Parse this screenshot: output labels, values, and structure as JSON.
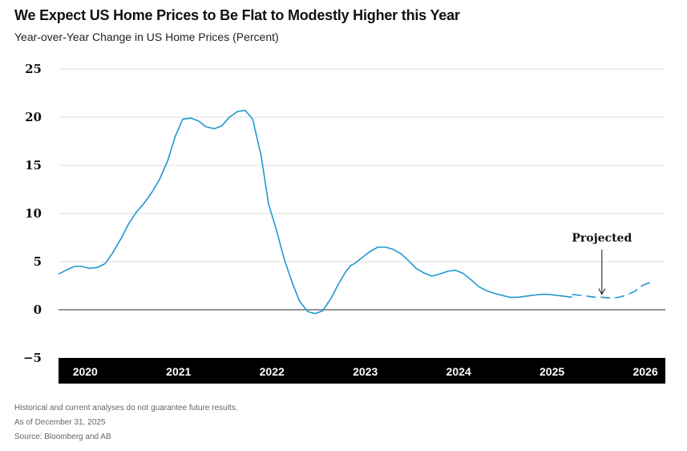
{
  "header": {
    "title": "We Expect US Home Prices to Be Flat to Modestly Higher this Year",
    "subtitle": "Year-over-Year Change in US Home Prices (Percent)"
  },
  "footer": {
    "note1": "Historical and current analyses do not guarantee future results.",
    "note2": "As of December 31, 2025",
    "note3": "Source: Bloomberg and AB"
  },
  "colors": {
    "line": "#1f97cf",
    "axis_band": "#000000",
    "grid": "#dddddd",
    "zero_line": "#555555"
  },
  "chart_data": {
    "type": "line",
    "title": "We Expect US Home Prices to Be Flat to Modestly Higher this Year",
    "ylabel": "Year-over-Year Change in US Home Prices (Percent)",
    "xlabel": "",
    "ylim": [
      -5,
      25
    ],
    "xlim": [
      2019.8,
      2026.3
    ],
    "yticks": [
      -5,
      0,
      5,
      10,
      15,
      20,
      25
    ],
    "ytick_labels": [
      "−5",
      "0",
      "5",
      "10",
      "15",
      "20",
      "25"
    ],
    "xticks": [
      2020,
      2021,
      2022,
      2023,
      2024,
      2025,
      2026
    ],
    "xtick_labels": [
      "2020",
      "2021",
      "2022",
      "2023",
      "2024",
      "2025",
      "2026"
    ],
    "grid": true,
    "annotation": {
      "text": "Projected",
      "x": 2025.62,
      "y": 1.2
    },
    "series": [
      {
        "style": "solid",
        "x": [
          2019.8,
          2019.88,
          2019.97,
          2020.05,
          2020.13,
          2020.22,
          2020.3,
          2020.38,
          2020.47,
          2020.55,
          2020.63,
          2020.72,
          2020.8,
          2020.88,
          2020.97,
          2021.05,
          2021.13,
          2021.22,
          2021.3,
          2021.38,
          2021.47,
          2021.55,
          2021.63,
          2021.72,
          2021.8,
          2021.88,
          2021.97,
          2022.05,
          2022.13,
          2022.22,
          2022.3,
          2022.38,
          2022.47,
          2022.55,
          2022.63,
          2022.72,
          2022.8,
          2022.88,
          2022.93,
          2022.97,
          2023.05,
          2023.13,
          2023.22,
          2023.3,
          2023.38,
          2023.47,
          2023.55,
          2023.63,
          2023.72,
          2023.8,
          2023.88,
          2023.97,
          2024.05,
          2024.13,
          2024.22,
          2024.3,
          2024.38,
          2024.47,
          2024.55,
          2024.63,
          2024.72,
          2024.8,
          2024.88,
          2024.97,
          2025.05,
          2025.13,
          2025.22,
          2025.3
        ],
        "values": [
          3.7,
          4.1,
          4.5,
          4.5,
          4.3,
          4.4,
          4.8,
          5.9,
          7.4,
          8.9,
          10.1,
          11.1,
          12.2,
          13.5,
          15.5,
          18.0,
          19.8,
          19.9,
          19.6,
          19.0,
          18.8,
          19.1,
          20.0,
          20.6,
          20.7,
          19.8,
          16.0,
          11.0,
          8.4,
          5.2,
          2.9,
          0.9,
          -0.2,
          -0.4,
          -0.1,
          1.2,
          2.7,
          4.0,
          4.6,
          4.8,
          5.4,
          6.0,
          6.5,
          6.5,
          6.3,
          5.8,
          5.1,
          4.3,
          3.8,
          3.5,
          3.7,
          4.0,
          4.1,
          3.8,
          3.1,
          2.4,
          2.0,
          1.7,
          1.5,
          1.3,
          1.3,
          1.4,
          1.5,
          1.6,
          1.6,
          1.5,
          1.4,
          1.3
        ]
      },
      {
        "style": "dashed",
        "x": [
          2025.3,
          2025.38,
          2025.47,
          2025.55,
          2025.63,
          2025.72,
          2025.8,
          2025.88,
          2025.97,
          2026.05,
          2026.15
        ],
        "values": [
          1.6,
          1.5,
          1.4,
          1.3,
          1.3,
          1.2,
          1.3,
          1.5,
          1.9,
          2.5,
          2.9
        ]
      }
    ]
  }
}
